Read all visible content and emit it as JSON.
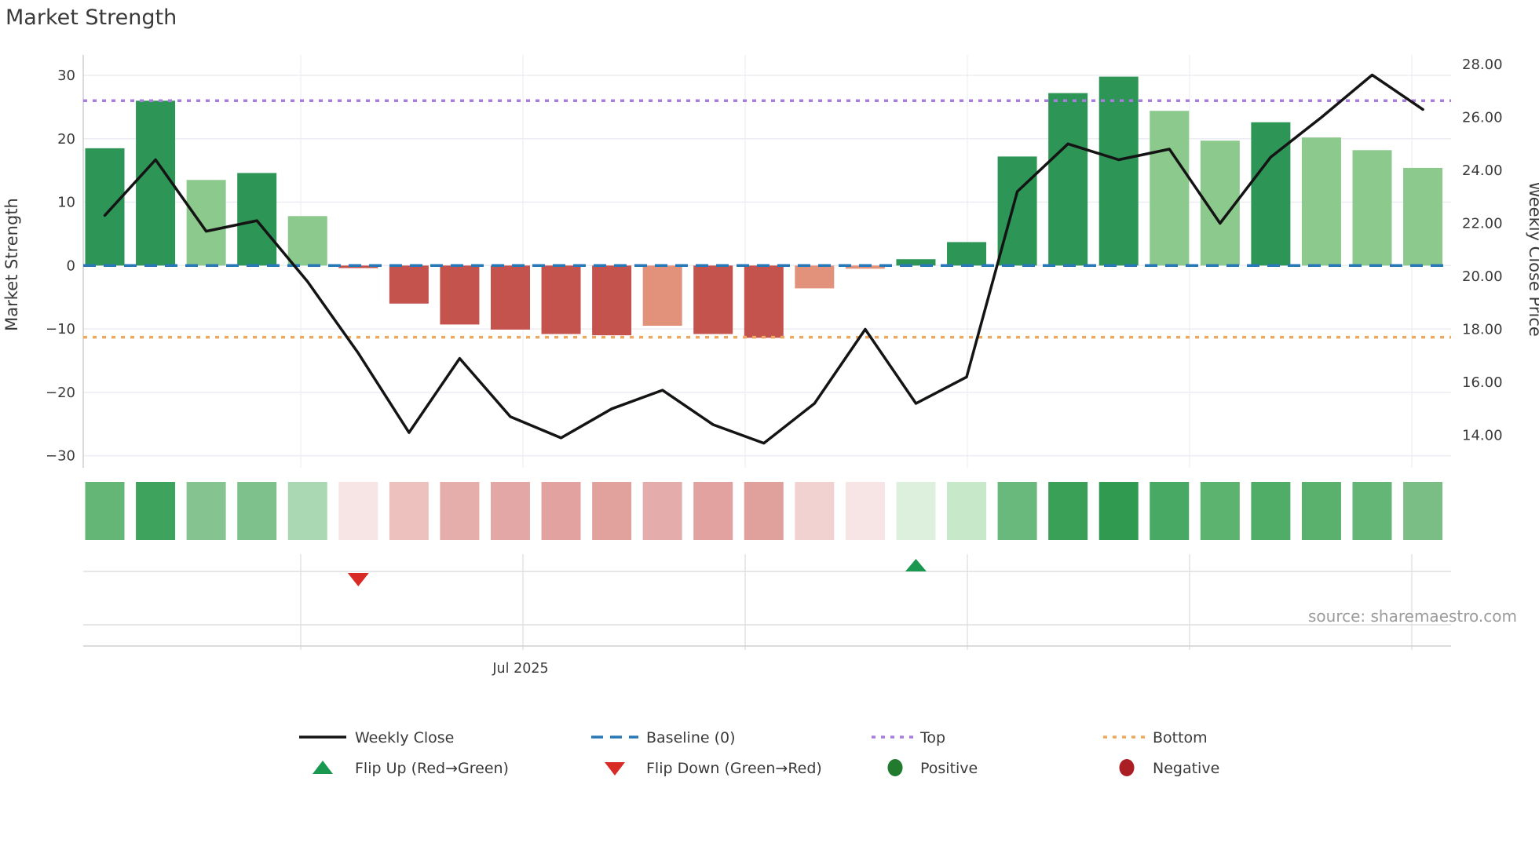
{
  "title": "Market Strength",
  "source_note": "source: sharemaestro.com",
  "axes": {
    "left": {
      "title": "Market Strength",
      "ticks": [
        "30",
        "20",
        "10",
        "0",
        "−10",
        "−20",
        "−30"
      ],
      "tick_values": [
        30,
        20,
        10,
        0,
        -10,
        -20,
        -30
      ]
    },
    "right": {
      "title": "Weekly Close Price",
      "ticks": [
        "28.00",
        "26.00",
        "24.00",
        "22.00",
        "20.00",
        "18.00",
        "16.00",
        "14.00"
      ],
      "tick_values": [
        28,
        26,
        24,
        22,
        20,
        18,
        16,
        14
      ]
    },
    "x": {
      "label": "Jul 2025"
    }
  },
  "legend": {
    "weekly_close": "Weekly Close",
    "baseline": "Baseline (0)",
    "top": "Top",
    "bottom": "Bottom",
    "flip_up": "Flip Up (Red→Green)",
    "flip_down": "Flip Down (Green→Red)",
    "positive": "Positive",
    "negative": "Negative"
  },
  "colors": {
    "bar_dark_green": "#2d9657",
    "bar_light_green": "#8cc98d",
    "bar_red": "#c4534e",
    "bar_salmon": "#e2917a",
    "line": "#141414",
    "baseline": "#2878b8",
    "top_line": "#a97de0",
    "bottom_line": "#eea95f",
    "flip_up": "#1a9850",
    "flip_down": "#d92b25",
    "positive_dot": "#217a2d",
    "negative_dot": "#ab1f24",
    "grid": "#ebedf3",
    "vgrid": "#f1f2f6",
    "band_line": "#dfdfe3",
    "axis_line": "#cfcfd4",
    "text": "#3a3a3a",
    "muted_text": "#9c9c9c"
  },
  "chart_data": {
    "type": "bar",
    "bar_series_name": "Market Strength",
    "line_series_name": "Weekly Close",
    "x_unit": "week",
    "n_points": 27,
    "bars": [
      18.5,
      26.0,
      13.5,
      14.6,
      7.8,
      -0.4,
      -6.0,
      -9.3,
      -10.1,
      -10.8,
      -11.0,
      -9.5,
      -10.8,
      -11.4,
      -3.6,
      -0.5,
      1.0,
      3.7,
      17.2,
      27.2,
      29.8,
      24.4,
      19.7,
      22.6,
      20.2,
      18.2,
      15.4
    ],
    "bar_shades": [
      "dark",
      "dark",
      "light",
      "dark",
      "light",
      "red",
      "red",
      "red",
      "red",
      "red",
      "red",
      "salmon",
      "red",
      "red",
      "salmon",
      "salmon",
      "dark",
      "dark",
      "dark",
      "dark",
      "dark",
      "light",
      "light",
      "dark",
      "light",
      "light",
      "light"
    ],
    "weekly_close": [
      22.3,
      24.4,
      21.7,
      22.1,
      19.8,
      17.1,
      14.1,
      16.9,
      14.7,
      13.9,
      15.0,
      15.7,
      14.4,
      13.7,
      15.2,
      18.0,
      15.2,
      16.2,
      23.2,
      25.0,
      24.4,
      24.8,
      22.0,
      24.5,
      26.0,
      27.6,
      26.3
    ],
    "baseline_value": 0,
    "top_value": 26,
    "bottom_value": -11.3,
    "flip_down_week": 6,
    "flip_up_week": 17,
    "ylim_left": [
      -33,
      33
    ],
    "ylim_right": [
      13.4,
      28.4
    ],
    "grid": "on",
    "legend_position": "bottom",
    "heatmap_row_colors": [
      "#63b676",
      "#3ea35c",
      "#85c491",
      "#7fc18c",
      "#a9d8b2",
      "#f7e5e5",
      "#ecc1be",
      "#e5aeab",
      "#e3a8a5",
      "#e2a3a0",
      "#e1a29e",
      "#e4acaa",
      "#e2a3a0",
      "#e0a09c",
      "#f1d2d0",
      "#f7e4e4",
      "#dcf0dd",
      "#c8e8ca",
      "#6ab97c",
      "#3aa058",
      "#2f9a50",
      "#48a964",
      "#5cb26f",
      "#50ad68",
      "#59b16d",
      "#64b677",
      "#7abe86"
    ],
    "month_gridlines_weeks": [
      4.9,
      9.2,
      13.6,
      18.0,
      22.4,
      26.8
    ],
    "labeled_month_index": 1
  }
}
